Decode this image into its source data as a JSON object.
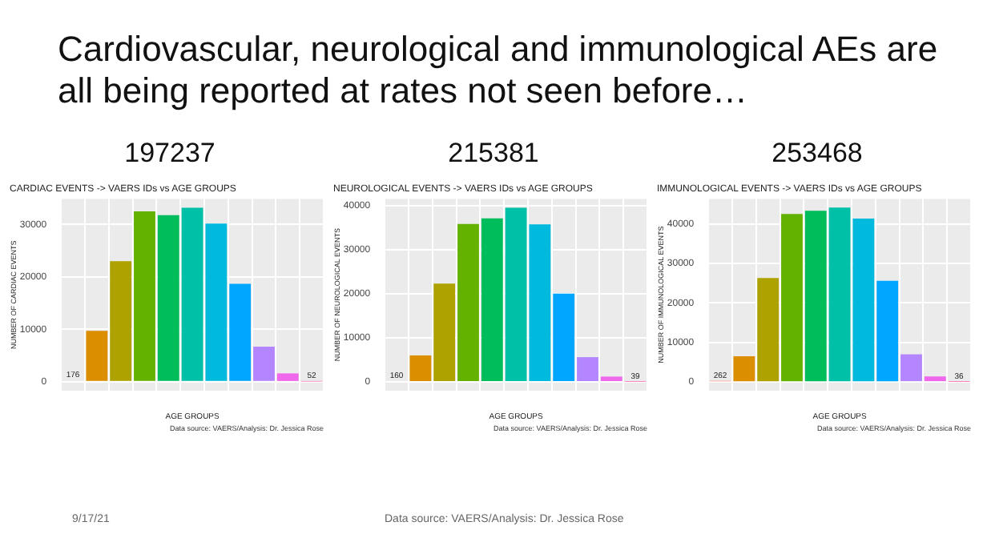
{
  "chart_data": [
    {
      "type": "other",
      "title": "Cardiovascular, neurological and immunological AEs are all being reported at rates not seen before…",
      "annotations": [
        "9/17/21",
        "Data source: VAERS/Analysis: Dr. Jessica Rose"
      ]
    },
    {
      "type": "bar",
      "title": "197237",
      "subtitle": "CARDIAC EVENTS -> VAERS IDs vs AGE GROUPS",
      "xlabel": "AGE GROUPS",
      "ylabel": "NUMBER OF CARDIAC EVENTS",
      "annotations": [
        "Data source: VAERS/Analysis: Dr. Jessica Rose"
      ],
      "categories": [
        null,
        null,
        null,
        null,
        null,
        null,
        null,
        null,
        null,
        null,
        null
      ],
      "values": [
        176,
        9700,
        23000,
        32500,
        31800,
        33200,
        30200,
        18700,
        6700,
        1600,
        52
      ],
      "value_labels": [
        "176",
        null,
        null,
        null,
        null,
        null,
        null,
        null,
        null,
        null,
        "52"
      ],
      "colors": [
        "#f8766d",
        "#db8e00",
        "#aea200",
        "#64b200",
        "#00bd5c",
        "#00c1a7",
        "#00bade",
        "#00a6ff",
        "#b385ff",
        "#ef67eb",
        "#ff63b6"
      ],
      "ylim": [
        -1700,
        34900
      ],
      "yticks": [
        0,
        10000,
        20000,
        30000
      ],
      "grid": true
    },
    {
      "type": "bar",
      "title": "215381",
      "subtitle": "NEUROLOGICAL EVENTS -> VAERS IDs vs AGE GROUPS",
      "xlabel": "AGE GROUPS",
      "ylabel": "NUMBER OF NEUROLOGICAL EVENTS",
      "annotations": [
        "Data source: VAERS/Analysis: Dr. Jessica Rose"
      ],
      "categories": [
        null,
        null,
        null,
        null,
        null,
        null,
        null,
        null,
        null,
        null,
        null
      ],
      "values": [
        160,
        6000,
        22300,
        35800,
        37100,
        39500,
        35700,
        20000,
        5600,
        1200,
        39
      ],
      "value_labels": [
        "160",
        null,
        null,
        null,
        null,
        null,
        null,
        null,
        null,
        null,
        "39"
      ],
      "colors": [
        "#f8766d",
        "#db8e00",
        "#aea200",
        "#64b200",
        "#00bd5c",
        "#00c1a7",
        "#00bade",
        "#00a6ff",
        "#b385ff",
        "#ef67eb",
        "#ff63b6"
      ],
      "ylim": [
        -2000,
        41500
      ],
      "yticks": [
        0,
        10000,
        20000,
        30000,
        40000
      ],
      "grid": true
    },
    {
      "type": "bar",
      "title": "253468",
      "subtitle": "IMMUNOLOGICAL EVENTS -> VAERS IDs vs AGE GROUPS",
      "xlabel": "AGE GROUPS",
      "ylabel": "NUMBER OF IMMUNOLOGICAL EVENTS",
      "annotations": [
        "Data source: VAERS/Analysis: Dr. Jessica Rose"
      ],
      "categories": [
        null,
        null,
        null,
        null,
        null,
        null,
        null,
        null,
        null,
        null,
        null
      ],
      "values": [
        262,
        6500,
        26300,
        42500,
        43300,
        44100,
        41300,
        25600,
        7000,
        1400,
        36
      ],
      "value_labels": [
        "262",
        null,
        null,
        null,
        null,
        null,
        null,
        null,
        null,
        null,
        "36"
      ],
      "colors": [
        "#f8766d",
        "#db8e00",
        "#aea200",
        "#64b200",
        "#00bd5c",
        "#00c1a7",
        "#00bade",
        "#00a6ff",
        "#b385ff",
        "#ef67eb",
        "#ff63b6"
      ],
      "ylim": [
        -2200,
        46300
      ],
      "yticks": [
        0,
        10000,
        20000,
        30000,
        40000
      ],
      "grid": true
    }
  ]
}
